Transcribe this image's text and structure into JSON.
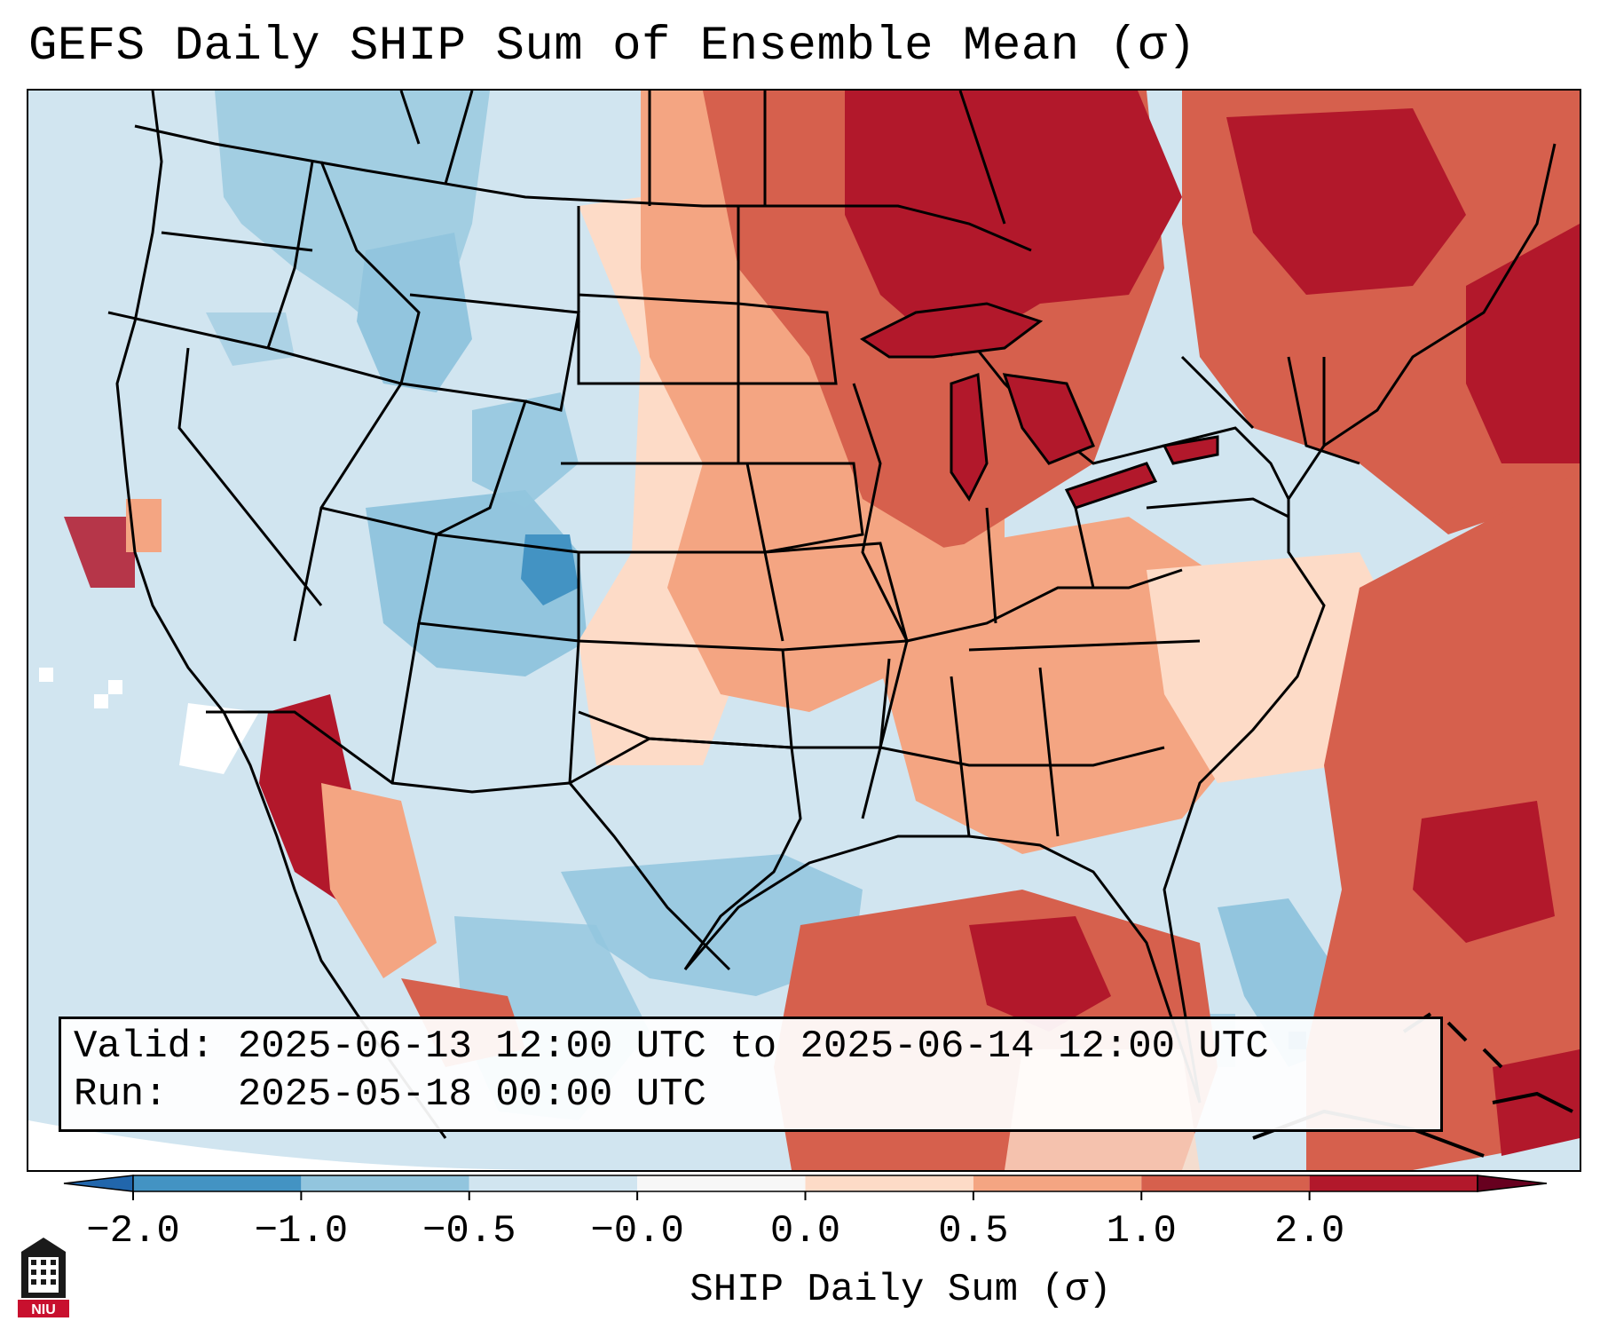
{
  "title": "GEFS Daily SHIP Sum of Ensemble Mean (σ)",
  "info": {
    "valid_line": "Valid: 2025-06-13 12:00 UTC to 2025-06-14 12:00 UTC",
    "run_line": "Run:   2025-05-18 00:00 UTC"
  },
  "colorbar": {
    "label": "SHIP Daily Sum (σ)",
    "ticks": [
      "−2.0",
      "−1.0",
      "−0.5",
      "−0.0",
      "0.0",
      "0.5",
      "1.0",
      "2.0"
    ],
    "colors": [
      "#4393c3",
      "#92c5de",
      "#d1e5f0",
      "#f7f7f7",
      "#fddbc7",
      "#f4a582",
      "#d6604d",
      "#b2182b"
    ],
    "under_color": "#2166ac",
    "over_color": "#67001f"
  },
  "logo": {
    "text": "NIU"
  },
  "map_colors": {
    "ocean_base": "#d1e5f0",
    "light_blue": "#d1e5f0",
    "mid_blue": "#92c5de",
    "dark_blue": "#4393c3",
    "light_red": "#fddbc7",
    "mid_red": "#f4a582",
    "red": "#d6604d",
    "dark_red": "#b2182b",
    "white": "#ffffff"
  }
}
